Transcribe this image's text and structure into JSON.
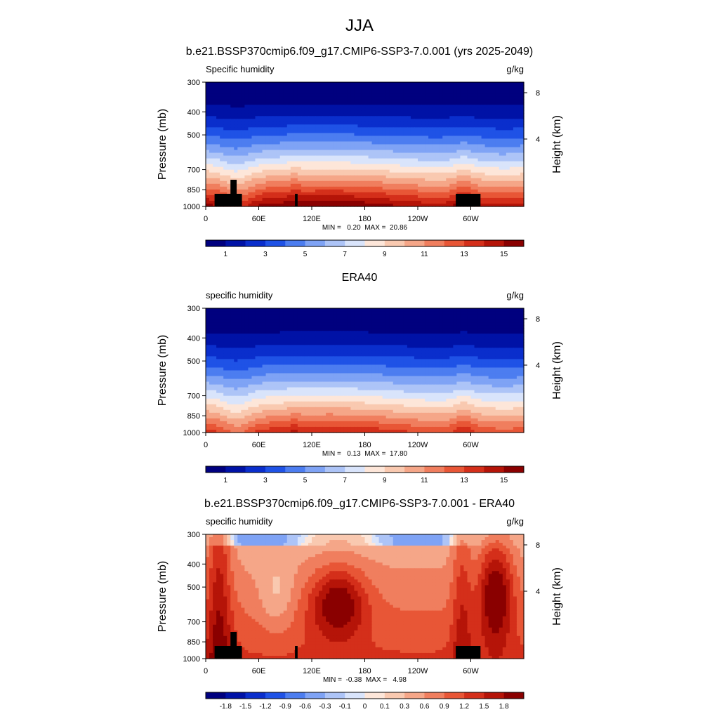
{
  "figure": {
    "title": "JJA"
  },
  "colors": {
    "humidity_palette": [
      "#00007f",
      "#0012a6",
      "#0a2ecc",
      "#1f52e6",
      "#4c7df0",
      "#7fa3f5",
      "#adc4f7",
      "#d9e4fb",
      "#fde6d9",
      "#f9c9b0",
      "#f5a688",
      "#f07e5e",
      "#e85636",
      "#d42f1a",
      "#b51408",
      "#8a0000"
    ],
    "diff_palette": [
      "#00007f",
      "#0012a6",
      "#0a2ecc",
      "#1f52e6",
      "#4c7df0",
      "#7fa3f5",
      "#adc4f7",
      "#d9e4fb",
      "#fde6d9",
      "#f9c9b0",
      "#f5a688",
      "#f07e5e",
      "#e85636",
      "#d42f1a",
      "#b51408",
      "#8a0000"
    ],
    "terrain": "#000000"
  },
  "chart_data": [
    {
      "type": "heatmap",
      "id": "model",
      "title": "b.e21.BSSP370cmip6.f09_g17.CMIP6-SSP3-7.0.001 (yrs 2025-2049)",
      "left_label": "Specific humidity",
      "right_label": "g/kg",
      "ylabel": "Pressure (mb)",
      "ylabel_right": "Height (km)",
      "yticks": [
        "300",
        "400",
        "500",
        "700",
        "850",
        "1000"
      ],
      "ytick_values": [
        300,
        400,
        500,
        700,
        850,
        1000
      ],
      "ylim": [
        1000,
        300
      ],
      "yscale": "log",
      "yticks_right": [
        "8",
        "4"
      ],
      "ytick_right_values": [
        8,
        4
      ],
      "xticks": [
        "0",
        "60E",
        "120E",
        "180",
        "120W",
        "60W"
      ],
      "xtick_values": [
        0,
        60,
        120,
        180,
        240,
        300
      ],
      "xlim": [
        0,
        360
      ],
      "min_label": "MIN =   0.20  MAX =  20.86",
      "min": 0.2,
      "max": 20.86,
      "colorbar_labels": [
        "1",
        "3",
        "5",
        "7",
        "9",
        "11",
        "13",
        "15"
      ],
      "colorbar_levels": [
        1,
        2,
        3,
        4,
        5,
        6,
        7,
        8,
        9,
        10,
        11,
        12,
        13,
        14,
        15
      ],
      "terrain": true
    },
    {
      "type": "heatmap",
      "id": "era40",
      "title": "ERA40",
      "left_label": "specific humidity",
      "right_label": "g/kg",
      "ylabel": "Pressure (mb)",
      "ylabel_right": "Height (km)",
      "yticks": [
        "300",
        "400",
        "500",
        "700",
        "850",
        "1000"
      ],
      "ytick_values": [
        300,
        400,
        500,
        700,
        850,
        1000
      ],
      "ylim": [
        1000,
        300
      ],
      "yscale": "log",
      "yticks_right": [
        "8",
        "4"
      ],
      "ytick_right_values": [
        8,
        4
      ],
      "xticks": [
        "0",
        "60E",
        "120E",
        "180",
        "120W",
        "60W"
      ],
      "xtick_values": [
        0,
        60,
        120,
        180,
        240,
        300
      ],
      "xlim": [
        0,
        360
      ],
      "min_label": "MIN =   0.13  MAX =  17.80",
      "min": 0.13,
      "max": 17.8,
      "colorbar_labels": [
        "1",
        "3",
        "5",
        "7",
        "9",
        "11",
        "13",
        "15"
      ],
      "colorbar_levels": [
        1,
        2,
        3,
        4,
        5,
        6,
        7,
        8,
        9,
        10,
        11,
        12,
        13,
        14,
        15
      ],
      "terrain": false
    },
    {
      "type": "heatmap",
      "id": "diff",
      "title": "b.e21.BSSP370cmip6.f09_g17.CMIP6-SSP3-7.0.001 - ERA40",
      "left_label": "specific humidity",
      "right_label": "g/kg",
      "ylabel": "Pressure (mb)",
      "ylabel_right": "Height (km)",
      "yticks": [
        "300",
        "400",
        "500",
        "700",
        "850",
        "1000"
      ],
      "ytick_values": [
        300,
        400,
        500,
        700,
        850,
        1000
      ],
      "ylim": [
        1000,
        300
      ],
      "yscale": "log",
      "yticks_right": [
        "8",
        "4"
      ],
      "ytick_right_values": [
        8,
        4
      ],
      "xticks": [
        "0",
        "60E",
        "120E",
        "180",
        "120W",
        "60W"
      ],
      "xtick_values": [
        0,
        60,
        120,
        180,
        240,
        300
      ],
      "xlim": [
        0,
        360
      ],
      "min_label": "MIN =  -0.38  MAX =   4.98",
      "min": -0.38,
      "max": 4.98,
      "colorbar_labels": [
        "-1.8",
        "-1.5",
        "-1.2",
        "-0.9",
        "-0.6",
        "-0.3",
        "-0.1",
        "0",
        "0.1",
        "0.3",
        "0.6",
        "0.9",
        "1.2",
        "1.5",
        "1.8"
      ],
      "colorbar_levels": [
        -1.8,
        -1.5,
        -1.2,
        -0.9,
        -0.6,
        -0.3,
        -0.1,
        0,
        0.1,
        0.3,
        0.6,
        0.9,
        1.2,
        1.5,
        1.8
      ],
      "terrain": true
    }
  ]
}
